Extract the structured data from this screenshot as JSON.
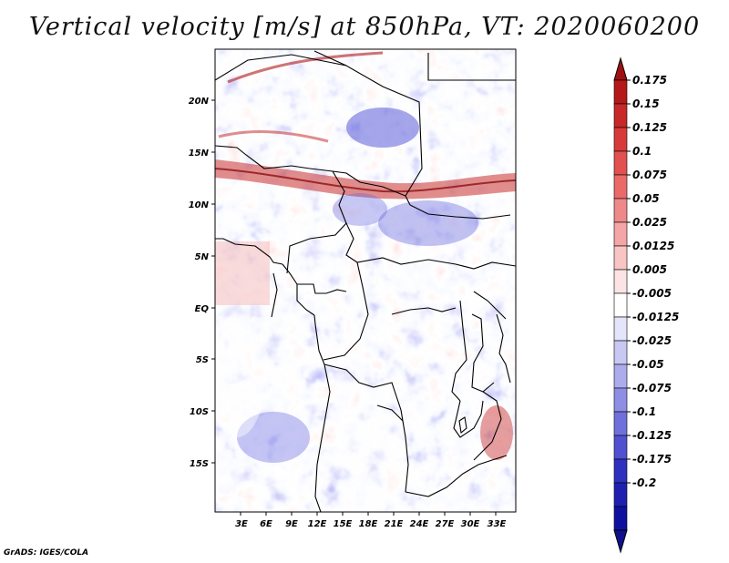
{
  "title": "Vertical velocity [m/s] at 850hPa, VT: 2020060200",
  "footer": "GrADS: IGES/COLA",
  "map": {
    "lat_labels": [
      "20N",
      "15N",
      "10N",
      "5N",
      "EQ",
      "5S",
      "10S",
      "15S"
    ],
    "lon_labels": [
      "3E",
      "6E",
      "9E",
      "12E",
      "15E",
      "18E",
      "21E",
      "24E",
      "27E",
      "30E",
      "33E"
    ],
    "lon_range": [
      0,
      35.5
    ],
    "lat_range": [
      -19.8,
      24.4
    ]
  },
  "colorbar": {
    "labels": [
      "0.175",
      "0.15",
      "0.125",
      "0.1",
      "0.075",
      "0.05",
      "0.025",
      "0.0125",
      "0.005",
      "-0.005",
      "-0.0125",
      "-0.025",
      "-0.05",
      "-0.075",
      "-0.1",
      "-0.125",
      "-0.175",
      "-0.2"
    ],
    "colors": [
      "#b41818",
      "#c82828",
      "#d83a3a",
      "#e25050",
      "#ea6a6a",
      "#ef8888",
      "#f4a6a6",
      "#f8c4c4",
      "#fce4e4",
      "#ffffff",
      "#e4e4fa",
      "#c8c8f2",
      "#acacec",
      "#8e8ee4",
      "#7070dc",
      "#5050d0",
      "#3030c0",
      "#2020b0",
      "#1010a0"
    ],
    "top_arrow_color": "#a01010",
    "bottom_arrow_color": "#10108c"
  }
}
